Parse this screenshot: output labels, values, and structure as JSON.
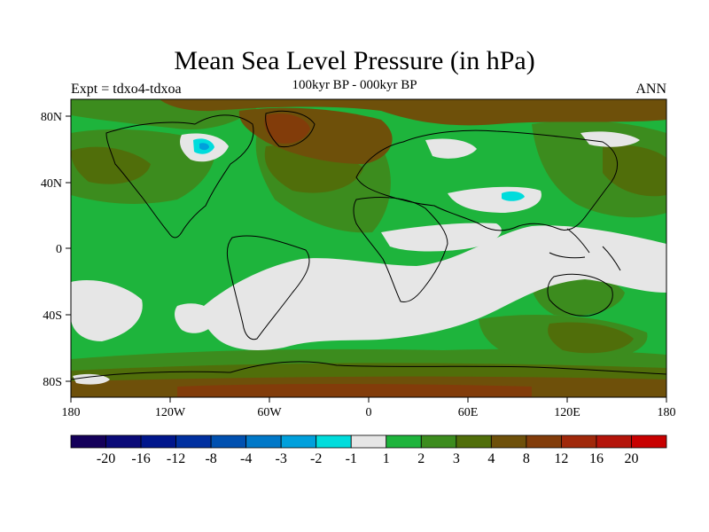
{
  "header": {
    "title": "Mean Sea Level Pressure (in hPa)",
    "subtitle": "100kyr BP - 000kyr BP",
    "expt": "Expt = tdxo4-tdxoa",
    "season": "ANN"
  },
  "axes": {
    "x_ticks": [
      "180",
      "120W",
      "60W",
      "0",
      "60E",
      "120E",
      "180"
    ],
    "y_ticks": [
      "80N",
      "40N",
      "0",
      "40S",
      "80S"
    ]
  },
  "colorbar": {
    "labels": [
      "-20",
      "-16",
      "-12",
      "-8",
      "-4",
      "-3",
      "-2",
      "-1",
      "1",
      "2",
      "3",
      "4",
      "8",
      "12",
      "16",
      "20"
    ],
    "colors": [
      "#14005a",
      "#0a0a78",
      "#00168c",
      "#0030a0",
      "#0050b0",
      "#0078c8",
      "#00a0dc",
      "#00dcdc",
      "#e6e6e6",
      "#1eb43c",
      "#3c8c1e",
      "#506e0a",
      "#6e500a",
      "#823c0a",
      "#a0280a",
      "#b4140a",
      "#c80000"
    ]
  },
  "map_colors": {
    "cat_1_2": "#1eb43c",
    "cat_2_3": "#3c8c1e",
    "cat_3_4": "#506e0a",
    "cat_4_8": "#6e500a",
    "cat_8_12": "#823c0a",
    "cat_m1_1": "#e6e6e6",
    "cat_m2_m1": "#00dcdc",
    "cat_m3_m2": "#00a0dc",
    "coastline": "#000000"
  }
}
